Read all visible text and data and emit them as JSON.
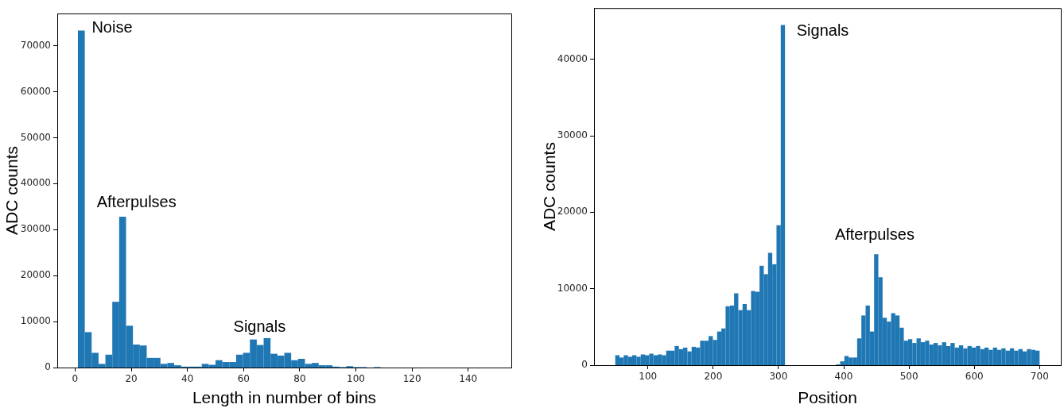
{
  "chart_data": [
    {
      "type": "histogram",
      "xlabel": "Length in number of bins",
      "ylabel": "ADC counts",
      "color": "#1f77b4",
      "bins": [
        1,
        3.45,
        5.9,
        8.35,
        10.8,
        13.25,
        15.7,
        18.15,
        20.6,
        23.05,
        25.5,
        27.95,
        30.4,
        32.85,
        35.3,
        37.75,
        40.2,
        42.65,
        45.1,
        47.55,
        50,
        52.45,
        54.9,
        57.35,
        59.8,
        62.25,
        64.7,
        67.15,
        69.6,
        72.05,
        74.5,
        76.95,
        79.4,
        81.85,
        84.3,
        86.75,
        89.2,
        91.65,
        94.1,
        96.55,
        99,
        101.45,
        103.9,
        106.35,
        108.8,
        111.25,
        113.7,
        116.15,
        118.6,
        121.05,
        123.5,
        125.95,
        128.4,
        130.85,
        133.3,
        135.75,
        138.2,
        140.65,
        143.1,
        145.55,
        148
      ],
      "values": [
        73300,
        7700,
        3200,
        800,
        2800,
        14300,
        32800,
        9100,
        5000,
        4800,
        2100,
        2100,
        800,
        1000,
        500,
        200,
        200,
        200,
        800,
        600,
        1600,
        1200,
        1200,
        2800,
        3200,
        6100,
        4900,
        6400,
        3000,
        2600,
        3200,
        1600,
        1900,
        800,
        1000,
        500,
        500,
        200,
        100,
        300,
        100,
        100,
        0,
        100,
        0,
        0,
        0,
        0,
        0,
        0,
        0,
        0,
        0,
        0,
        0,
        0,
        0,
        0,
        0,
        0
      ],
      "xlim": [
        -6.35,
        155.35
      ],
      "xticks": [
        0,
        20,
        40,
        60,
        80,
        100,
        120,
        140
      ],
      "ylim": [
        0,
        77000
      ],
      "yticks": [
        0,
        10000,
        20000,
        30000,
        40000,
        50000,
        60000,
        70000
      ],
      "grid": false,
      "legend": false,
      "annotations": [
        "Noise",
        "Afterpulses",
        "Signals"
      ]
    },
    {
      "type": "histogram",
      "xlabel": "Position",
      "ylabel": "ADC counts",
      "color": "#1f77b4",
      "bins": [
        50,
        56.5,
        63,
        69.5,
        76,
        82.5,
        89,
        95.5,
        102,
        108.5,
        115,
        121.5,
        128,
        134.5,
        141,
        147.5,
        154,
        160.5,
        167,
        173.5,
        180,
        186.5,
        193,
        199.5,
        206,
        212.5,
        219,
        225.5,
        232,
        238.5,
        245,
        251.5,
        258,
        264.5,
        271,
        277.5,
        284,
        290.5,
        297,
        303.5,
        310,
        316.5,
        323,
        329.5,
        336,
        342.5,
        349,
        355.5,
        362,
        368.5,
        375,
        381.5,
        388,
        394.5,
        401,
        407.5,
        414,
        420.5,
        427,
        433.5,
        440,
        446.5,
        453,
        459.5,
        466,
        472.5,
        479,
        485.5,
        492,
        498.5,
        505,
        511.5,
        518,
        524.5,
        531,
        537.5,
        544,
        550.5,
        557,
        563.5,
        570,
        576.5,
        583,
        589.5,
        596,
        602.5,
        609,
        615.5,
        622,
        628.5,
        635,
        641.5,
        648,
        654.5,
        661,
        667.5,
        674,
        680.5,
        687,
        693.5,
        700
      ],
      "values": [
        1300,
        1000,
        1300,
        1100,
        1300,
        1100,
        1400,
        1300,
        1500,
        1300,
        1400,
        1300,
        1900,
        1900,
        2500,
        2100,
        2300,
        1800,
        2400,
        2300,
        3200,
        3200,
        3800,
        3300,
        4400,
        4800,
        7700,
        7800,
        9400,
        7200,
        8000,
        7200,
        9700,
        9600,
        13000,
        11900,
        14700,
        13200,
        18300,
        44500,
        0,
        0,
        0,
        0,
        0,
        0,
        0,
        0,
        0,
        0,
        0,
        0,
        100,
        500,
        1200,
        1000,
        1000,
        3500,
        6500,
        7800,
        4400,
        14500,
        11500,
        6200,
        5700,
        6800,
        6500,
        4900,
        3200,
        3400,
        2900,
        3500,
        3000,
        3200,
        2700,
        2900,
        2600,
        3000,
        2500,
        2900,
        2300,
        2600,
        2200,
        2500,
        2300,
        2500,
        2100,
        2300,
        2000,
        2300,
        2000,
        2200,
        1900,
        2200,
        1900,
        2100,
        1800,
        2100,
        2000,
        1900
      ],
      "xlim": [
        17.5,
        732.5
      ],
      "xticks": [
        100,
        200,
        300,
        400,
        500,
        600,
        700
      ],
      "ylim": [
        0,
        46700
      ],
      "yticks": [
        0,
        10000,
        20000,
        30000,
        40000
      ],
      "grid": false,
      "legend": false,
      "annotations": [
        "Signals",
        "Afterpulses"
      ]
    }
  ]
}
